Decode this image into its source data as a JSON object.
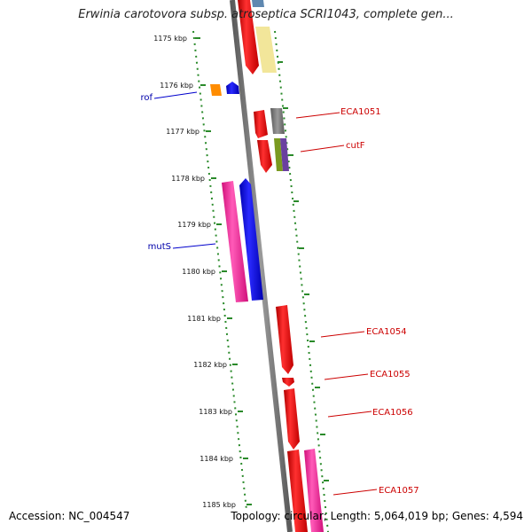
{
  "title": "Erwinia carotovora subsp. atroseptica SCRI1043, complete gen...",
  "accession": "Accession: NC_004547",
  "topology": "Topology: circular; Length: 5,064,019 bp; Genes: 4,594",
  "ticks": [
    "1175 kbp",
    "1176 kbp",
    "1177 kbp",
    "1178 kbp",
    "1179 kbp",
    "1180 kbp",
    "1181 kbp",
    "1182 kbp",
    "1183 kbp",
    "1184 kbp",
    "1185 kbp"
  ],
  "gene_labels": {
    "rof": "rof",
    "mutS": "mutS",
    "eca1051": "ECA1051",
    "cutF": "cutF",
    "eca1054": "ECA1054",
    "eca1055": "ECA1055",
    "eca1056": "ECA1056",
    "eca1057": "ECA1057"
  },
  "colors": {
    "backbone": "#8a8a8a",
    "tick": "#2a8a2a",
    "red_gene": "#ee0000",
    "pink_gene": "#ff2aa0",
    "blue_gene": "#0000ee",
    "orange_gene": "#ff8c00",
    "gray_gene": "#777777",
    "olive_gene": "#7a9a20",
    "purple_gene": "#6a40a0",
    "yellow_gene": "#f2e69a",
    "steel_gene": "#5f88b0",
    "label_red": "#cc0000",
    "label_blue": "#0000aa"
  }
}
